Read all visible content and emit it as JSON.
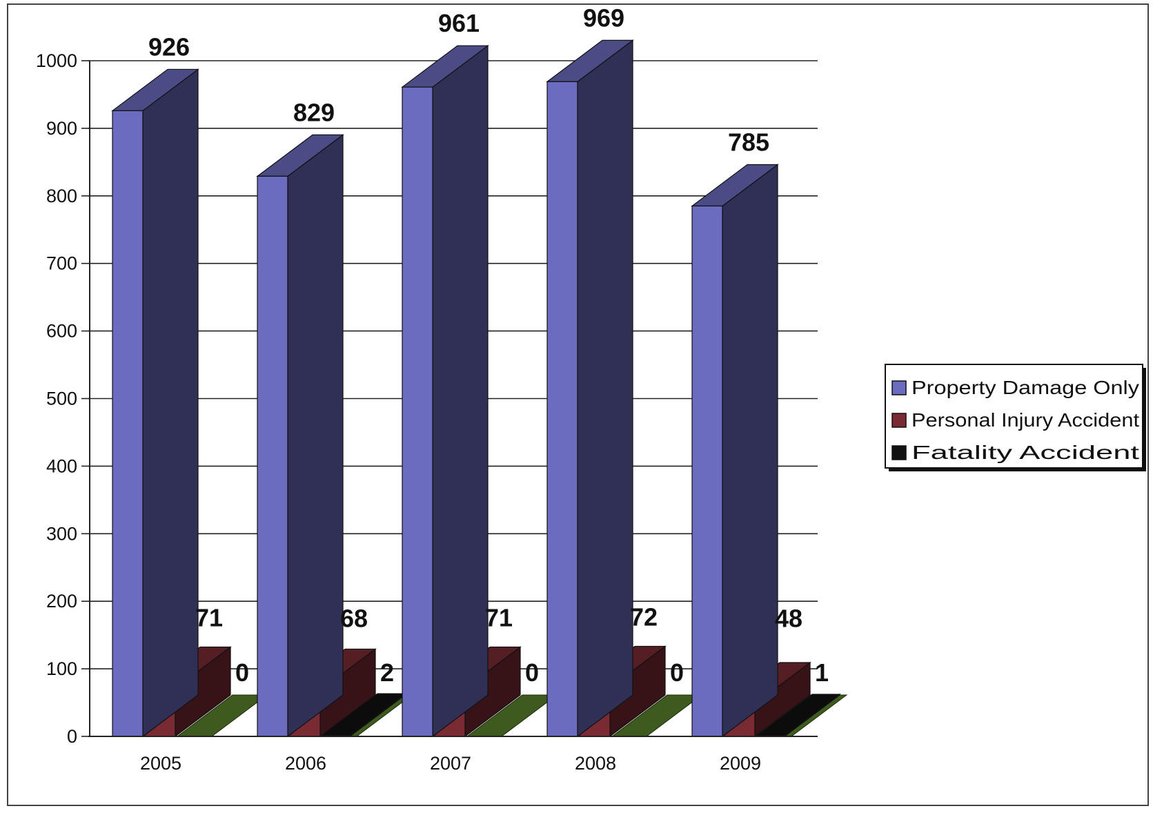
{
  "chart_data": {
    "type": "bar",
    "title": "",
    "xlabel": "",
    "ylabel": "",
    "categories": [
      "2005",
      "2006",
      "2007",
      "2008",
      "2009"
    ],
    "ylim": [
      0,
      1000
    ],
    "yticks": [
      0,
      100,
      200,
      300,
      400,
      500,
      600,
      700,
      800,
      900,
      1000
    ],
    "grid": true,
    "legend_position": "right",
    "three_d": true,
    "series": [
      {
        "name": "Property Damage Only",
        "values": [
          926,
          829,
          961,
          969,
          785
        ],
        "color": "#6b6bc0"
      },
      {
        "name": "Personal Injury Accident",
        "values": [
          71,
          68,
          71,
          72,
          48
        ],
        "color": "#7a2a33"
      },
      {
        "name": "Fatality Accident",
        "values": [
          0,
          2,
          0,
          0,
          1
        ],
        "color": "#111111"
      }
    ],
    "floor_color": "#3e5a1e"
  }
}
